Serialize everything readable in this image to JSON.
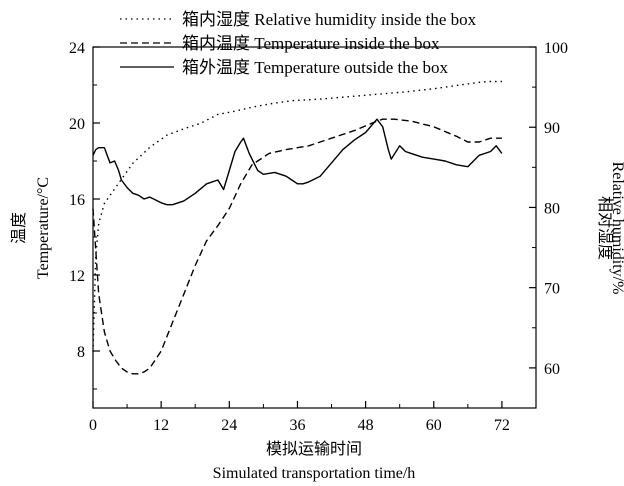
{
  "chart_data": {
    "type": "line",
    "title": "",
    "xlabel_cn": "模拟运输时间",
    "xlabel_en": "Simulated transportation time/h",
    "ylabel_left_cn": "温度",
    "ylabel_left_en": "Temperature/°C",
    "ylabel_right_cn": "相对湿度",
    "ylabel_right_en": "Relative humidity/%",
    "xlim": [
      0,
      78
    ],
    "ylim_left": [
      5,
      24
    ],
    "ylim_right": [
      55,
      100
    ],
    "xticks": [
      0,
      12,
      24,
      36,
      48,
      60,
      72
    ],
    "yticks_left": [
      8,
      12,
      16,
      20,
      24
    ],
    "yticks_right": [
      60,
      70,
      80,
      90,
      100
    ],
    "grid": false,
    "legend_position": "top",
    "series": [
      {
        "name": "箱内湿度 Relative humidity inside the box",
        "axis": "right",
        "style": "dotted",
        "color": "#000000",
        "x": [
          0,
          0.5,
          1,
          2,
          3,
          5,
          7,
          10,
          13,
          16,
          19,
          22,
          25,
          28,
          31,
          35,
          40,
          45,
          50,
          55,
          60,
          65,
          68,
          70,
          72
        ],
        "y": [
          62,
          74,
          78,
          80.5,
          81.5,
          83.5,
          85.5,
          87.5,
          89,
          89.8,
          90.5,
          91.6,
          92,
          92.5,
          92.9,
          93.3,
          93.5,
          93.8,
          94.1,
          94.4,
          94.8,
          95.3,
          95.6,
          95.7,
          95.7
        ]
      },
      {
        "name": "箱内温度 Temperature inside the box",
        "axis": "left",
        "style": "dashed",
        "color": "#000000",
        "x": [
          0,
          1,
          2,
          3,
          4,
          5,
          6,
          7,
          8,
          9,
          10,
          12,
          14,
          16,
          18,
          20,
          22,
          24,
          26,
          28,
          31,
          34,
          38,
          42,
          46,
          50,
          51,
          53,
          56,
          60,
          64,
          66,
          68,
          70,
          72
        ],
        "y": [
          15.5,
          11,
          9,
          8,
          7.5,
          7.1,
          6.9,
          6.8,
          6.8,
          6.9,
          7.1,
          8,
          9.5,
          11,
          12.5,
          13.8,
          14.6,
          15.5,
          16.8,
          17.8,
          18.4,
          18.6,
          18.8,
          19.2,
          19.6,
          20.1,
          20.2,
          20.2,
          20.1,
          19.8,
          19.3,
          19.0,
          19.0,
          19.2,
          19.2
        ]
      },
      {
        "name": "箱外温度 Temperature outside the box",
        "axis": "left",
        "style": "solid",
        "color": "#000000",
        "x": [
          0,
          0.5,
          1,
          2,
          3,
          3.8,
          4.5,
          5,
          6,
          7,
          8,
          9,
          10,
          12,
          13,
          14,
          16,
          18,
          20,
          22,
          23,
          24,
          25,
          26,
          26.5,
          27.5,
          29,
          30,
          32,
          34,
          35,
          36,
          37,
          38,
          40,
          42,
          44,
          46,
          48,
          50,
          51,
          52,
          52.5,
          54,
          55,
          56,
          58,
          60,
          62,
          64,
          66,
          67,
          68,
          70,
          71,
          72
        ],
        "y": [
          18.3,
          18.6,
          18.7,
          18.7,
          17.9,
          18.0,
          17.5,
          17.0,
          16.6,
          16.3,
          16.2,
          16.0,
          16.1,
          15.8,
          15.7,
          15.7,
          15.9,
          16.3,
          16.8,
          17.0,
          16.5,
          17.5,
          18.5,
          19.0,
          19.2,
          18.4,
          17.5,
          17.3,
          17.4,
          17.2,
          17.0,
          16.8,
          16.8,
          16.9,
          17.2,
          17.9,
          18.6,
          19.1,
          19.5,
          20.2,
          19.8,
          18.6,
          18.1,
          18.8,
          18.5,
          18.4,
          18.2,
          18.1,
          18.0,
          17.8,
          17.7,
          18.0,
          18.3,
          18.5,
          18.8,
          18.4
        ]
      }
    ]
  }
}
